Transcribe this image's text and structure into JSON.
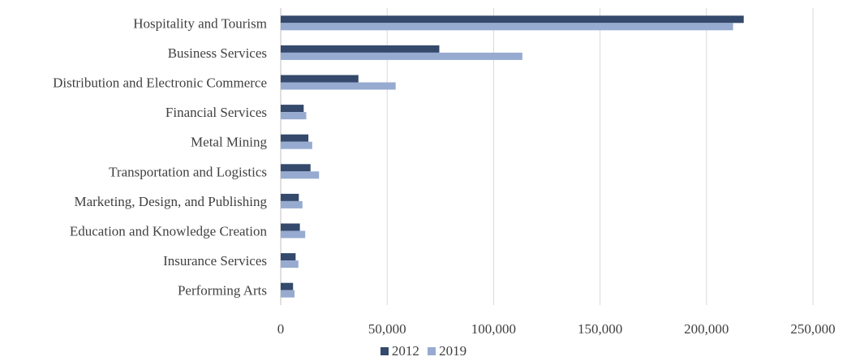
{
  "chart_data": {
    "type": "bar",
    "orientation": "horizontal",
    "categories": [
      "Hospitality and Tourism",
      "Business Services",
      "Distribution and Electronic Commerce",
      "Financial Services",
      "Metal Mining",
      "Transportation and Logistics",
      "Marketing, Design, and Publishing",
      "Education and Knowledge Creation",
      "Insurance Services",
      "Performing Arts"
    ],
    "series": [
      {
        "name": "2012",
        "color": "#34496b",
        "values": [
          217500,
          74500,
          36500,
          10800,
          13000,
          14000,
          8500,
          9000,
          7000,
          5800
        ]
      },
      {
        "name": "2019",
        "color": "#97abd0",
        "values": [
          212500,
          113500,
          54000,
          12000,
          14800,
          18000,
          10200,
          11500,
          8300,
          6500
        ]
      }
    ],
    "xlim": [
      0,
      250000
    ],
    "xticks": [
      0,
      50000,
      100000,
      150000,
      200000,
      250000
    ],
    "xtick_labels": [
      "0",
      "50,000",
      "100,000",
      "150,000",
      "200,000",
      "250,000"
    ],
    "grid": "vertical",
    "legend_position": "bottom",
    "title": "",
    "xlabel": "",
    "ylabel": ""
  }
}
